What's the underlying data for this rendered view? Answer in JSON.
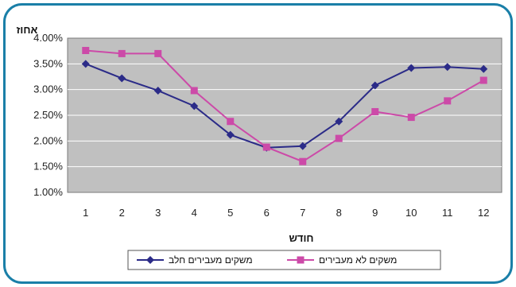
{
  "chart_data": {
    "type": "line",
    "ylabel": "אחוז",
    "xlabel": "חודש",
    "x": [
      "1",
      "2",
      "3",
      "4",
      "5",
      "6",
      "7",
      "8",
      "9",
      "10",
      "11",
      "12"
    ],
    "ylim": [
      0.01,
      0.04
    ],
    "ytick_labels": [
      "4.00%",
      "3.50%",
      "3.00%",
      "2.50%",
      "2.00%",
      "1.50%",
      "1.00%"
    ],
    "grid": true,
    "legend_position": "bottom",
    "series": [
      {
        "name": "משקים מעבירים חלב",
        "color": "#2b2b88",
        "marker": "diamond",
        "values": [
          0.035,
          0.0322,
          0.0298,
          0.0268,
          0.0212,
          0.0187,
          0.019,
          0.0238,
          0.0308,
          0.0342,
          0.0344,
          0.034
        ]
      },
      {
        "name": "משקים לא מעבירים",
        "color": "#cc4aa8",
        "marker": "square",
        "values": [
          0.0376,
          0.037,
          0.037,
          0.0298,
          0.0238,
          0.0188,
          0.016,
          0.0205,
          0.0257,
          0.0246,
          0.0278,
          0.0318
        ]
      }
    ],
    "colors": {
      "frame": "#1a7fa8",
      "plot_background": "#c0c0c0",
      "gridline": "#ffffff"
    }
  }
}
